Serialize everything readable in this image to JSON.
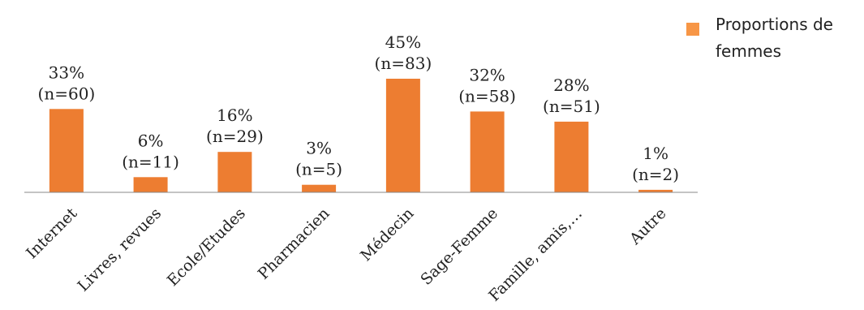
{
  "chart_data": {
    "type": "bar",
    "categories": [
      "Internet",
      "Livres, revues",
      "Ecole/Etudes",
      "Pharmacien",
      "Médecin",
      "Sage-Femme",
      "Famille, amis,…",
      "Autre"
    ],
    "series": [
      {
        "name": "Proportions de femmes",
        "values": [
          33,
          6,
          16,
          3,
          45,
          32,
          28,
          1
        ],
        "labels": [
          "33%",
          "6%",
          "16%",
          "3%",
          "45%",
          "32%",
          "28%",
          "1%"
        ],
        "counts": [
          "(n=60)",
          "(n=11)",
          "(n=29)",
          "(n=5)",
          "(n=83)",
          "(n=58)",
          "(n=51)",
          "(n=2)"
        ]
      }
    ],
    "title": "",
    "xlabel": "",
    "ylabel": "",
    "ylim": [
      0,
      45
    ],
    "grid": false,
    "legend_position": "top-right",
    "colors": {
      "bar": "#ED7D31",
      "legend_swatch": "#F79646",
      "axis": "#888888"
    }
  }
}
